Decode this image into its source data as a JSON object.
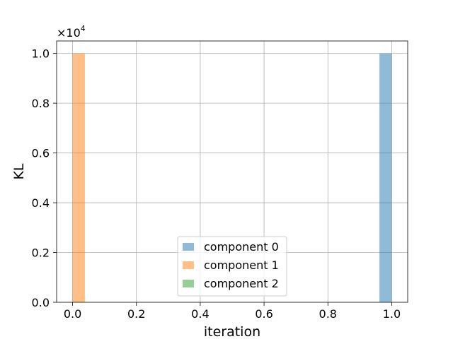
{
  "chart_data": {
    "type": "bar",
    "xlabel": "iteration",
    "ylabel": "KL",
    "xlim": [
      -0.05,
      1.05
    ],
    "ylim": [
      0.0,
      1.05
    ],
    "y_offset_text": "×10",
    "y_offset_exponent": "4",
    "x_ticks": [
      0.0,
      0.2,
      0.4,
      0.6,
      0.8,
      1.0
    ],
    "x_tick_labels": [
      "0.0",
      "0.2",
      "0.4",
      "0.6",
      "0.8",
      "1.0"
    ],
    "y_ticks": [
      0.0,
      0.2,
      0.4,
      0.6,
      0.8,
      1.0
    ],
    "y_tick_labels": [
      "0.0",
      "0.2",
      "0.4",
      "0.6",
      "0.8",
      "1.0"
    ],
    "grid": true,
    "legend_position": "lower-center",
    "series": [
      {
        "name": "component 0",
        "color": "#1f77b4",
        "bins": [
          {
            "x0": 0.9615,
            "x1": 1.0,
            "value": 1.0
          }
        ]
      },
      {
        "name": "component 1",
        "color": "#ff7f0e",
        "bins": [
          {
            "x0": 0.0,
            "x1": 0.0385,
            "value": 1.0
          }
        ]
      },
      {
        "name": "component 2",
        "color": "#2ca02c",
        "bins": []
      }
    ],
    "bar_alpha": 0.5
  }
}
